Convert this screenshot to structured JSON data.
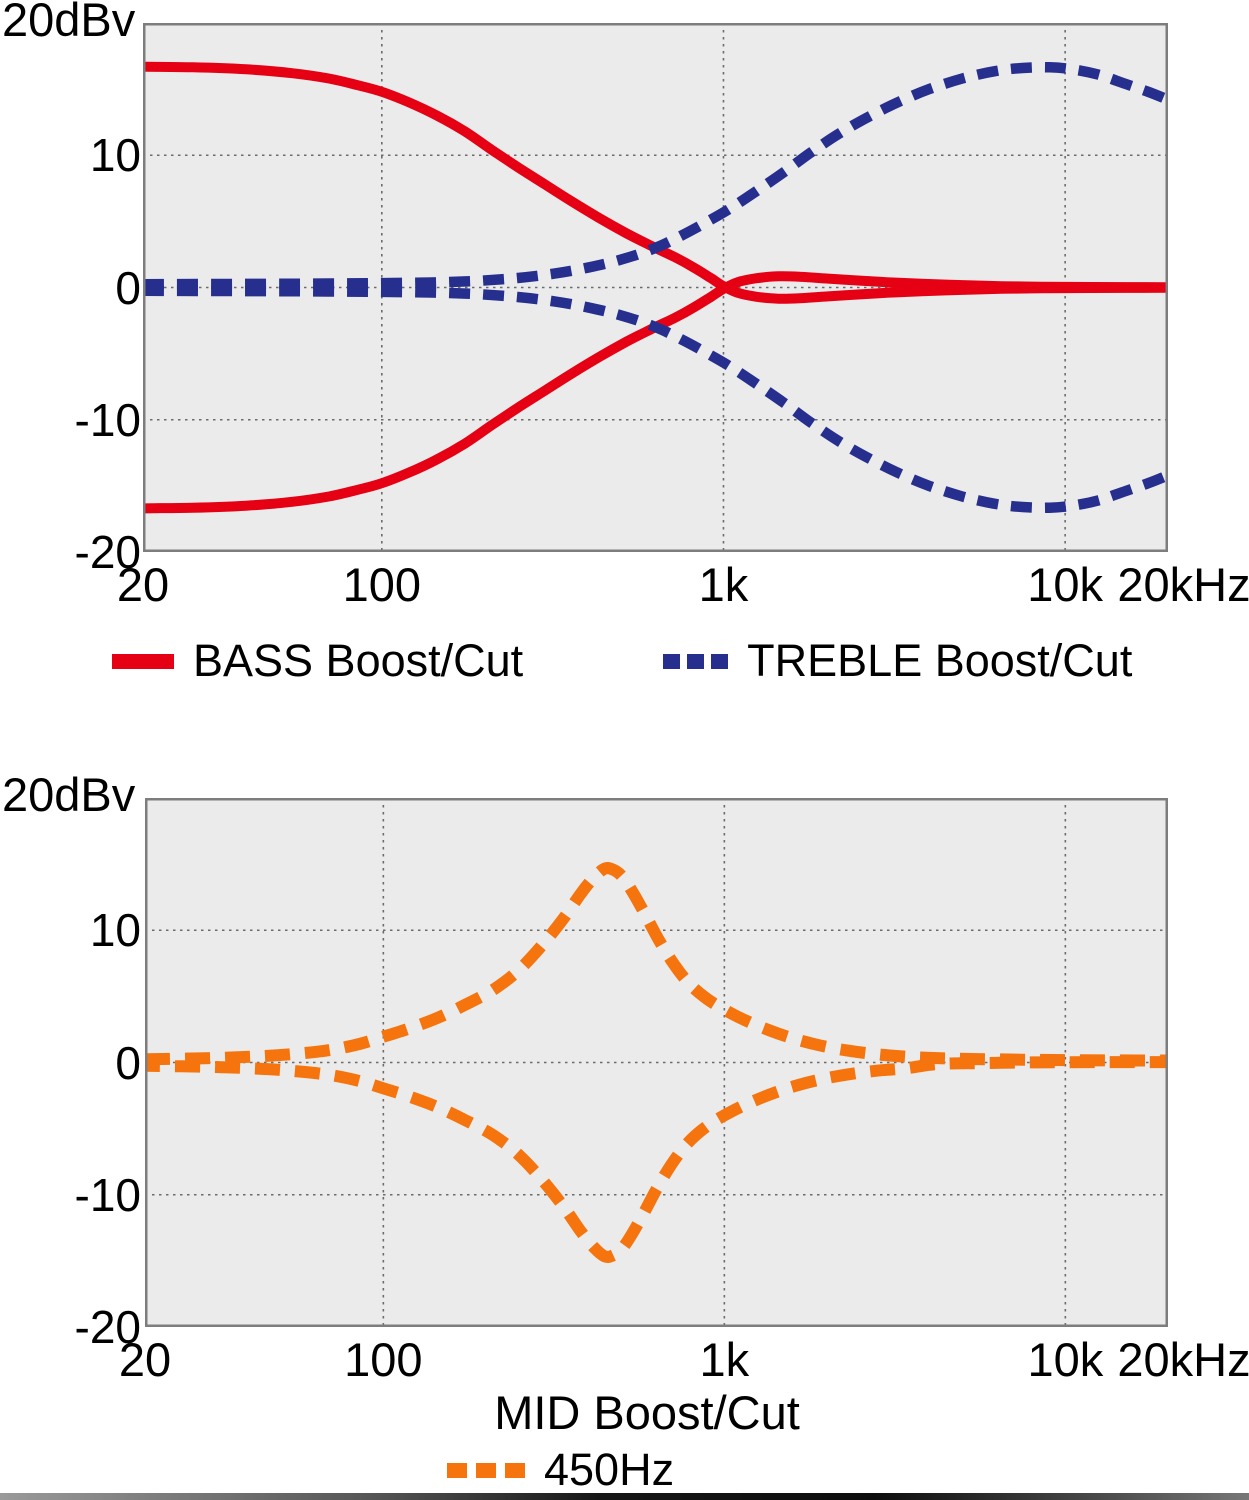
{
  "figure": {
    "background": "#ffffff",
    "plot_background": "#ebebec",
    "grid_color": "#4c4c4c",
    "border_color": "#7d7d7d"
  },
  "chart_data": [
    {
      "type": "line",
      "name": "bass-treble-tone-response",
      "x_axis": {
        "scale": "log",
        "min": 20,
        "max": 20000,
        "ticks": [
          {
            "f": 20,
            "label": "20"
          },
          {
            "f": 100,
            "label": "100"
          },
          {
            "f": 1000,
            "label": "1k"
          },
          {
            "f": 10000,
            "label": "10k"
          },
          {
            "f": 20000,
            "label": "20kHz"
          }
        ],
        "gridlines": [
          100,
          1000,
          10000
        ]
      },
      "y_axis": {
        "unit_label": "20dBv",
        "min": -20,
        "max": 20,
        "ticks": [
          {
            "db": 10,
            "label": "10"
          },
          {
            "db": 0,
            "label": "0"
          },
          {
            "db": -10,
            "label": "-10"
          },
          {
            "db": -20,
            "label": "-20"
          }
        ],
        "gridlines": [
          10,
          0,
          -10
        ]
      },
      "series": [
        {
          "name": "bass-boost",
          "color": "#e60014",
          "style": "solid",
          "width": 10,
          "points": [
            [
              20,
              16.7
            ],
            [
              28,
              16.65
            ],
            [
              40,
              16.5
            ],
            [
              55,
              16.2
            ],
            [
              70,
              15.8
            ],
            [
              85,
              15.3
            ],
            [
              100,
              14.8
            ],
            [
              120,
              14.0
            ],
            [
              145,
              13.0
            ],
            [
              175,
              11.8
            ],
            [
              210,
              10.4
            ],
            [
              250,
              9.1
            ],
            [
              300,
              7.8
            ],
            [
              360,
              6.5
            ],
            [
              430,
              5.3
            ],
            [
              520,
              4.1
            ],
            [
              620,
              3.1
            ],
            [
              720,
              2.3
            ],
            [
              820,
              1.5
            ],
            [
              920,
              0.7
            ],
            [
              1000,
              0.1
            ],
            [
              1100,
              -0.4
            ],
            [
              1250,
              -0.7
            ],
            [
              1450,
              -0.85
            ],
            [
              1700,
              -0.8
            ],
            [
              2000,
              -0.68
            ],
            [
              2400,
              -0.55
            ],
            [
              3000,
              -0.4
            ],
            [
              3800,
              -0.28
            ],
            [
              5000,
              -0.18
            ],
            [
              6500,
              -0.1
            ],
            [
              8500,
              -0.06
            ],
            [
              12000,
              -0.04
            ],
            [
              20000,
              -0.02
            ]
          ]
        },
        {
          "name": "bass-cut",
          "color": "#e60014",
          "style": "solid",
          "width": 10,
          "points": [
            [
              20,
              -16.7
            ],
            [
              28,
              -16.65
            ],
            [
              40,
              -16.5
            ],
            [
              55,
              -16.2
            ],
            [
              70,
              -15.8
            ],
            [
              85,
              -15.3
            ],
            [
              100,
              -14.8
            ],
            [
              120,
              -14.0
            ],
            [
              145,
              -13.0
            ],
            [
              175,
              -11.8
            ],
            [
              210,
              -10.4
            ],
            [
              250,
              -9.1
            ],
            [
              300,
              -7.8
            ],
            [
              360,
              -6.5
            ],
            [
              430,
              -5.3
            ],
            [
              520,
              -4.1
            ],
            [
              620,
              -3.1
            ],
            [
              720,
              -2.3
            ],
            [
              820,
              -1.5
            ],
            [
              920,
              -0.7
            ],
            [
              1000,
              -0.1
            ],
            [
              1100,
              0.4
            ],
            [
              1250,
              0.7
            ],
            [
              1450,
              0.85
            ],
            [
              1700,
              0.8
            ],
            [
              2000,
              0.68
            ],
            [
              2400,
              0.55
            ],
            [
              3000,
              0.4
            ],
            [
              3800,
              0.28
            ],
            [
              5000,
              0.18
            ],
            [
              6500,
              0.1
            ],
            [
              8500,
              0.06
            ],
            [
              12000,
              0.04
            ],
            [
              20000,
              0.02
            ]
          ]
        },
        {
          "name": "treble-boost",
          "color": "#262f8e",
          "style": "dashed",
          "dash": "21 13",
          "width": 10.5,
          "points": [
            [
              20,
              0.25
            ],
            [
              40,
              0.27
            ],
            [
              70,
              0.3
            ],
            [
              100,
              0.33
            ],
            [
              140,
              0.38
            ],
            [
              190,
              0.5
            ],
            [
              250,
              0.72
            ],
            [
              320,
              1.05
            ],
            [
              400,
              1.5
            ],
            [
              500,
              2.1
            ],
            [
              620,
              2.9
            ],
            [
              750,
              3.9
            ],
            [
              900,
              5.0
            ],
            [
              1050,
              6.0
            ],
            [
              1250,
              7.3
            ],
            [
              1500,
              8.7
            ],
            [
              1800,
              10.2
            ],
            [
              2200,
              11.7
            ],
            [
              2700,
              13.0
            ],
            [
              3300,
              14.1
            ],
            [
              4000,
              15.0
            ],
            [
              5000,
              15.8
            ],
            [
              6200,
              16.35
            ],
            [
              7500,
              16.6
            ],
            [
              9000,
              16.65
            ],
            [
              10500,
              16.5
            ],
            [
              12500,
              16.1
            ],
            [
              15000,
              15.4
            ],
            [
              17500,
              14.8
            ],
            [
              20000,
              14.2
            ]
          ]
        },
        {
          "name": "treble-cut",
          "color": "#262f8e",
          "style": "dashed",
          "dash": "21 13",
          "width": 10.5,
          "points": [
            [
              20,
              -0.25
            ],
            [
              40,
              -0.27
            ],
            [
              70,
              -0.3
            ],
            [
              100,
              -0.33
            ],
            [
              140,
              -0.38
            ],
            [
              190,
              -0.5
            ],
            [
              250,
              -0.72
            ],
            [
              320,
              -1.05
            ],
            [
              400,
              -1.5
            ],
            [
              500,
              -2.1
            ],
            [
              620,
              -2.9
            ],
            [
              750,
              -3.9
            ],
            [
              900,
              -5.0
            ],
            [
              1050,
              -6.0
            ],
            [
              1250,
              -7.3
            ],
            [
              1500,
              -8.7
            ],
            [
              1800,
              -10.2
            ],
            [
              2200,
              -11.7
            ],
            [
              2700,
              -13.0
            ],
            [
              3300,
              -14.1
            ],
            [
              4000,
              -15.0
            ],
            [
              5000,
              -15.8
            ],
            [
              6200,
              -16.35
            ],
            [
              7500,
              -16.6
            ],
            [
              9000,
              -16.65
            ],
            [
              10500,
              -16.5
            ],
            [
              12500,
              -16.1
            ],
            [
              15000,
              -15.4
            ],
            [
              17500,
              -14.8
            ],
            [
              20000,
              -14.2
            ]
          ]
        }
      ],
      "legend": [
        {
          "label": "BASS Boost/Cut",
          "swatch": "solid",
          "color": "#e60014"
        },
        {
          "label": "TREBLE Boost/Cut",
          "swatch": "dashed",
          "color": "#262f8e"
        }
      ]
    },
    {
      "type": "line",
      "name": "mid-tone-response",
      "xlabel": "MID Boost/Cut",
      "x_axis": {
        "scale": "log",
        "min": 20,
        "max": 20000,
        "ticks": [
          {
            "f": 20,
            "label": "20"
          },
          {
            "f": 100,
            "label": "100"
          },
          {
            "f": 1000,
            "label": "1k"
          },
          {
            "f": 10000,
            "label": "10k"
          },
          {
            "f": 20000,
            "label": "20kHz"
          }
        ],
        "gridlines": [
          100,
          1000,
          10000
        ]
      },
      "y_axis": {
        "unit_label": "20dBv",
        "min": -20,
        "max": 20,
        "ticks": [
          {
            "db": 10,
            "label": "10"
          },
          {
            "db": 0,
            "label": "0"
          },
          {
            "db": -10,
            "label": "-10"
          },
          {
            "db": -20,
            "label": "-20"
          }
        ],
        "gridlines": [
          10,
          0,
          -10
        ]
      },
      "series": [
        {
          "name": "mid-boost-450hz",
          "color": "#f5740e",
          "style": "dashed",
          "dash": "25 15",
          "width": 12,
          "points": [
            [
              20,
              0.25
            ],
            [
              30,
              0.32
            ],
            [
              42,
              0.45
            ],
            [
              55,
              0.65
            ],
            [
              70,
              0.95
            ],
            [
              85,
              1.4
            ],
            [
              100,
              1.95
            ],
            [
              120,
              2.6
            ],
            [
              145,
              3.4
            ],
            [
              175,
              4.4
            ],
            [
              210,
              5.5
            ],
            [
              250,
              7.0
            ],
            [
              295,
              9.0
            ],
            [
              340,
              11.0
            ],
            [
              380,
              12.8
            ],
            [
              415,
              14.0
            ],
            [
              445,
              14.65
            ],
            [
              470,
              14.6
            ],
            [
              500,
              14.1
            ],
            [
              535,
              13.0
            ],
            [
              580,
              11.4
            ],
            [
              635,
              9.5
            ],
            [
              700,
              7.7
            ],
            [
              780,
              6.1
            ],
            [
              880,
              4.9
            ],
            [
              1000,
              4.0
            ],
            [
              1150,
              3.2
            ],
            [
              1350,
              2.45
            ],
            [
              1600,
              1.8
            ],
            [
              1900,
              1.3
            ],
            [
              2300,
              0.9
            ],
            [
              2800,
              0.62
            ],
            [
              3400,
              0.44
            ],
            [
              4200,
              0.33
            ],
            [
              5500,
              0.26
            ],
            [
              7500,
              0.21
            ],
            [
              10000,
              0.18
            ],
            [
              14000,
              0.16
            ],
            [
              20000,
              0.15
            ]
          ]
        },
        {
          "name": "mid-cut-450hz",
          "color": "#f5740e",
          "style": "dashed",
          "dash": "25 15",
          "dashoffset": 10,
          "width": 12,
          "points": [
            [
              20,
              -0.25
            ],
            [
              30,
              -0.32
            ],
            [
              42,
              -0.45
            ],
            [
              55,
              -0.65
            ],
            [
              70,
              -0.95
            ],
            [
              85,
              -1.4
            ],
            [
              100,
              -1.95
            ],
            [
              120,
              -2.6
            ],
            [
              145,
              -3.4
            ],
            [
              175,
              -4.4
            ],
            [
              210,
              -5.5
            ],
            [
              250,
              -7.0
            ],
            [
              295,
              -9.0
            ],
            [
              340,
              -11.0
            ],
            [
              380,
              -12.8
            ],
            [
              415,
              -14.0
            ],
            [
              445,
              -14.65
            ],
            [
              470,
              -14.6
            ],
            [
              500,
              -14.1
            ],
            [
              535,
              -13.0
            ],
            [
              580,
              -11.4
            ],
            [
              635,
              -9.5
            ],
            [
              700,
              -7.7
            ],
            [
              780,
              -6.1
            ],
            [
              880,
              -4.9
            ],
            [
              1000,
              -4.0
            ],
            [
              1150,
              -3.2
            ],
            [
              1350,
              -2.45
            ],
            [
              1600,
              -1.8
            ],
            [
              1900,
              -1.3
            ],
            [
              2300,
              -0.9
            ],
            [
              2800,
              -0.62
            ],
            [
              3400,
              -0.44
            ],
            [
              4200,
              -0.12
            ],
            [
              5500,
              -0.05
            ],
            [
              7500,
              0.0
            ],
            [
              10000,
              0.02
            ],
            [
              14000,
              0.03
            ],
            [
              20000,
              0.03
            ]
          ]
        }
      ],
      "legend": [
        {
          "label": "450Hz",
          "swatch": "dashed",
          "color": "#f5740e"
        }
      ]
    }
  ]
}
